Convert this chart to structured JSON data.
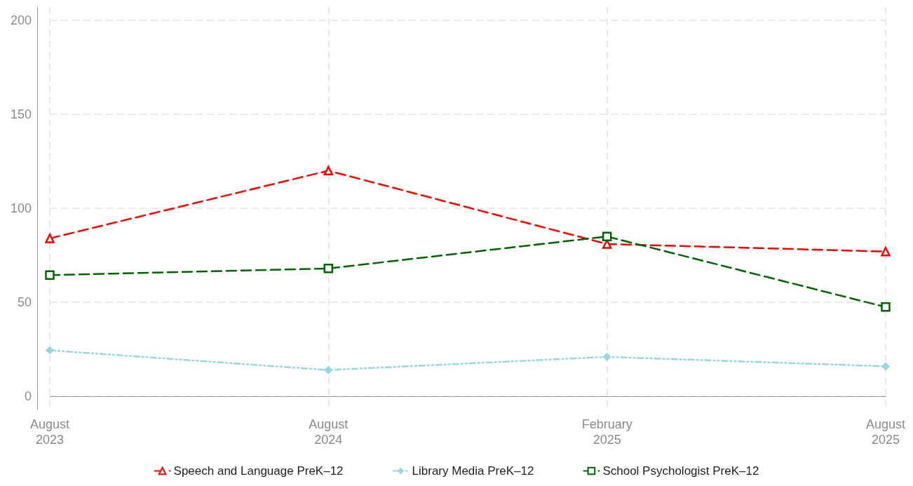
{
  "chart_data": {
    "type": "line",
    "categories": [
      "August\n2023",
      "August\n2024",
      "February\n2025",
      "August\n2025"
    ],
    "series": [
      {
        "name": "Speech and Language PreK–12",
        "color": "#ff0000",
        "values": [
          84,
          120,
          81,
          77
        ],
        "marker": "triangle",
        "line_style": "dashed"
      },
      {
        "name": "Library Media PreK–12",
        "color": "#96d7e3",
        "values": [
          24.5,
          14,
          21,
          16
        ],
        "marker": "diamond",
        "line_style": "dotted"
      },
      {
        "name": "School Psychologist PreK–12",
        "color": "#006400",
        "values": [
          64.5,
          68,
          85,
          47.5
        ],
        "marker": "square",
        "line_style": "dashed"
      }
    ],
    "ylim": [
      -7,
      207
    ],
    "yticks": [
      0,
      50,
      100,
      150,
      200
    ],
    "grid": true,
    "legend": "bottom"
  }
}
